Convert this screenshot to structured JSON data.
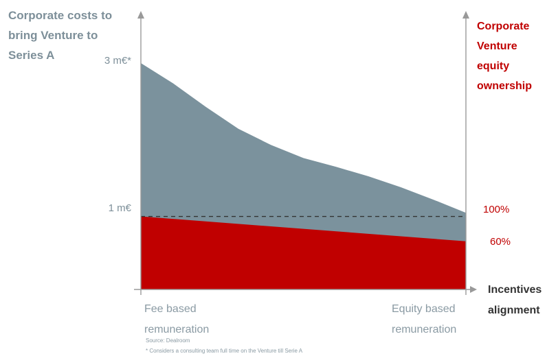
{
  "chart_data": {
    "type": "area",
    "left_axis_title": "Corporate costs to bring Venture to Series A",
    "right_axis_title": "Corporate Venture equity ownership",
    "x_axis_title": "Incentives alignment",
    "x_tick_labels": [
      "Fee based remuneration",
      "Equity based remuneration"
    ],
    "left_tick_labels": [
      "3 m€*",
      "1 m€"
    ],
    "right_tick_labels": [
      "100%",
      "60%"
    ],
    "reference_line": {
      "value": 1,
      "style": "dashed"
    },
    "ylim": [
      0,
      3.1
    ],
    "series": [
      {
        "x": [
          0,
          0.1,
          0.2,
          0.3,
          0.4,
          0.5,
          0.6,
          0.7,
          0.8,
          0.9,
          1.0
        ],
        "values": [
          3.1,
          2.82,
          2.5,
          2.2,
          1.98,
          1.8,
          1.68,
          1.55,
          1.4,
          1.23,
          1.05
        ],
        "color": "#7b929d"
      },
      {
        "x": [
          0,
          1
        ],
        "values": [
          1.0,
          0.66
        ],
        "color": "#c00000"
      }
    ]
  },
  "footnotes": {
    "source": "Source: Dealroom",
    "consideration": "* Considers a consulting team full time on the Venture till Serie A"
  },
  "colors": {
    "axis": "#999999",
    "accent_red": "#c00000",
    "slate": "#7b929d"
  }
}
